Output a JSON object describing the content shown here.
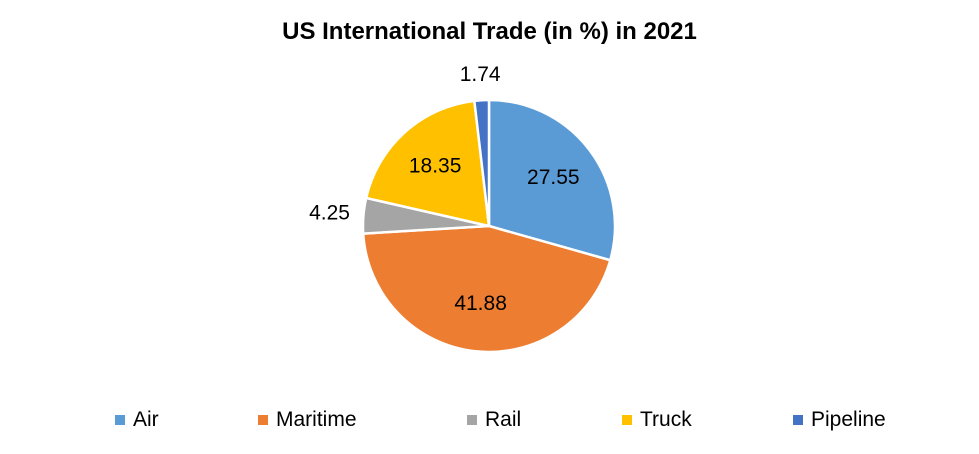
{
  "chart_data": {
    "type": "pie",
    "title": "US International Trade (in %) in 2021",
    "categories": [
      "Air",
      "Maritime",
      "Rail",
      "Truck",
      "Pipeline"
    ],
    "values": [
      27.55,
      41.88,
      4.25,
      18.35,
      1.74
    ],
    "data_labels": [
      "27.55",
      "41.88",
      "4.25",
      "18.35",
      "1.74"
    ],
    "colors": [
      "#5B9BD5",
      "#ED7D31",
      "#A5A5A5",
      "#FFC000",
      "#4472C4"
    ],
    "legend_position": "bottom",
    "start_angle_deg": 0,
    "direction": "clockwise"
  }
}
